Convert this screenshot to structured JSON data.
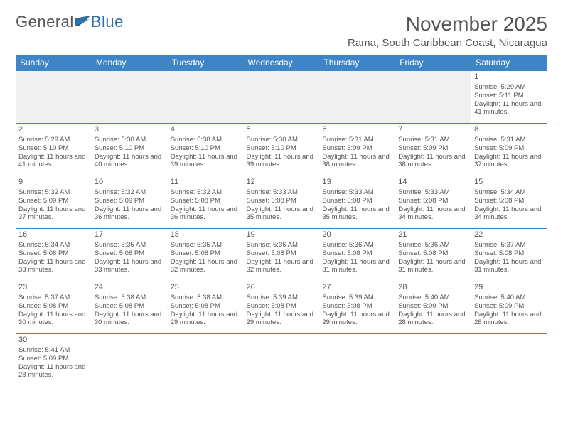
{
  "logo": {
    "text1": "General",
    "text2": "Blue"
  },
  "title": "November 2025",
  "location": "Rama, South Caribbean Coast, Nicaragua",
  "colors": {
    "header_bg": "#3d85c6",
    "header_text": "#ffffff",
    "border": "#3d85c6",
    "text": "#555555",
    "empty_bg": "#f0f0f0",
    "logo_blue": "#2f6fa8"
  },
  "day_headers": [
    "Sunday",
    "Monday",
    "Tuesday",
    "Wednesday",
    "Thursday",
    "Friday",
    "Saturday"
  ],
  "weeks": [
    [
      {
        "empty": true
      },
      {
        "empty": true
      },
      {
        "empty": true
      },
      {
        "empty": true
      },
      {
        "empty": true
      },
      {
        "empty": true
      },
      {
        "d": "1",
        "sr": "5:29 AM",
        "ss": "5:11 PM",
        "dl": "11 hours and 41 minutes."
      }
    ],
    [
      {
        "d": "2",
        "sr": "5:29 AM",
        "ss": "5:10 PM",
        "dl": "11 hours and 41 minutes."
      },
      {
        "d": "3",
        "sr": "5:30 AM",
        "ss": "5:10 PM",
        "dl": "11 hours and 40 minutes."
      },
      {
        "d": "4",
        "sr": "5:30 AM",
        "ss": "5:10 PM",
        "dl": "11 hours and 39 minutes."
      },
      {
        "d": "5",
        "sr": "5:30 AM",
        "ss": "5:10 PM",
        "dl": "11 hours and 39 minutes."
      },
      {
        "d": "6",
        "sr": "5:31 AM",
        "ss": "5:09 PM",
        "dl": "11 hours and 38 minutes."
      },
      {
        "d": "7",
        "sr": "5:31 AM",
        "ss": "5:09 PM",
        "dl": "11 hours and 38 minutes."
      },
      {
        "d": "8",
        "sr": "5:31 AM",
        "ss": "5:09 PM",
        "dl": "11 hours and 37 minutes."
      }
    ],
    [
      {
        "d": "9",
        "sr": "5:32 AM",
        "ss": "5:09 PM",
        "dl": "11 hours and 37 minutes."
      },
      {
        "d": "10",
        "sr": "5:32 AM",
        "ss": "5:09 PM",
        "dl": "11 hours and 36 minutes."
      },
      {
        "d": "11",
        "sr": "5:32 AM",
        "ss": "5:08 PM",
        "dl": "11 hours and 36 minutes."
      },
      {
        "d": "12",
        "sr": "5:33 AM",
        "ss": "5:08 PM",
        "dl": "11 hours and 35 minutes."
      },
      {
        "d": "13",
        "sr": "5:33 AM",
        "ss": "5:08 PM",
        "dl": "11 hours and 35 minutes."
      },
      {
        "d": "14",
        "sr": "5:33 AM",
        "ss": "5:08 PM",
        "dl": "11 hours and 34 minutes."
      },
      {
        "d": "15",
        "sr": "5:34 AM",
        "ss": "5:08 PM",
        "dl": "11 hours and 34 minutes."
      }
    ],
    [
      {
        "d": "16",
        "sr": "5:34 AM",
        "ss": "5:08 PM",
        "dl": "11 hours and 33 minutes."
      },
      {
        "d": "17",
        "sr": "5:35 AM",
        "ss": "5:08 PM",
        "dl": "11 hours and 33 minutes."
      },
      {
        "d": "18",
        "sr": "5:35 AM",
        "ss": "5:08 PM",
        "dl": "11 hours and 32 minutes."
      },
      {
        "d": "19",
        "sr": "5:36 AM",
        "ss": "5:08 PM",
        "dl": "11 hours and 32 minutes."
      },
      {
        "d": "20",
        "sr": "5:36 AM",
        "ss": "5:08 PM",
        "dl": "11 hours and 31 minutes."
      },
      {
        "d": "21",
        "sr": "5:36 AM",
        "ss": "5:08 PM",
        "dl": "11 hours and 31 minutes."
      },
      {
        "d": "22",
        "sr": "5:37 AM",
        "ss": "5:08 PM",
        "dl": "11 hours and 31 minutes."
      }
    ],
    [
      {
        "d": "23",
        "sr": "5:37 AM",
        "ss": "5:08 PM",
        "dl": "11 hours and 30 minutes."
      },
      {
        "d": "24",
        "sr": "5:38 AM",
        "ss": "5:08 PM",
        "dl": "11 hours and 30 minutes."
      },
      {
        "d": "25",
        "sr": "5:38 AM",
        "ss": "5:08 PM",
        "dl": "11 hours and 29 minutes."
      },
      {
        "d": "26",
        "sr": "5:39 AM",
        "ss": "5:08 PM",
        "dl": "11 hours and 29 minutes."
      },
      {
        "d": "27",
        "sr": "5:39 AM",
        "ss": "5:08 PM",
        "dl": "11 hours and 29 minutes."
      },
      {
        "d": "28",
        "sr": "5:40 AM",
        "ss": "5:09 PM",
        "dl": "11 hours and 28 minutes."
      },
      {
        "d": "29",
        "sr": "5:40 AM",
        "ss": "5:09 PM",
        "dl": "11 hours and 28 minutes."
      }
    ],
    [
      {
        "d": "30",
        "sr": "5:41 AM",
        "ss": "5:09 PM",
        "dl": "11 hours and 28 minutes."
      },
      {
        "empty": true
      },
      {
        "empty": true
      },
      {
        "empty": true
      },
      {
        "empty": true
      },
      {
        "empty": true
      },
      {
        "empty": true
      }
    ]
  ],
  "labels": {
    "sunrise": "Sunrise:",
    "sunset": "Sunset:",
    "daylight": "Daylight:"
  }
}
